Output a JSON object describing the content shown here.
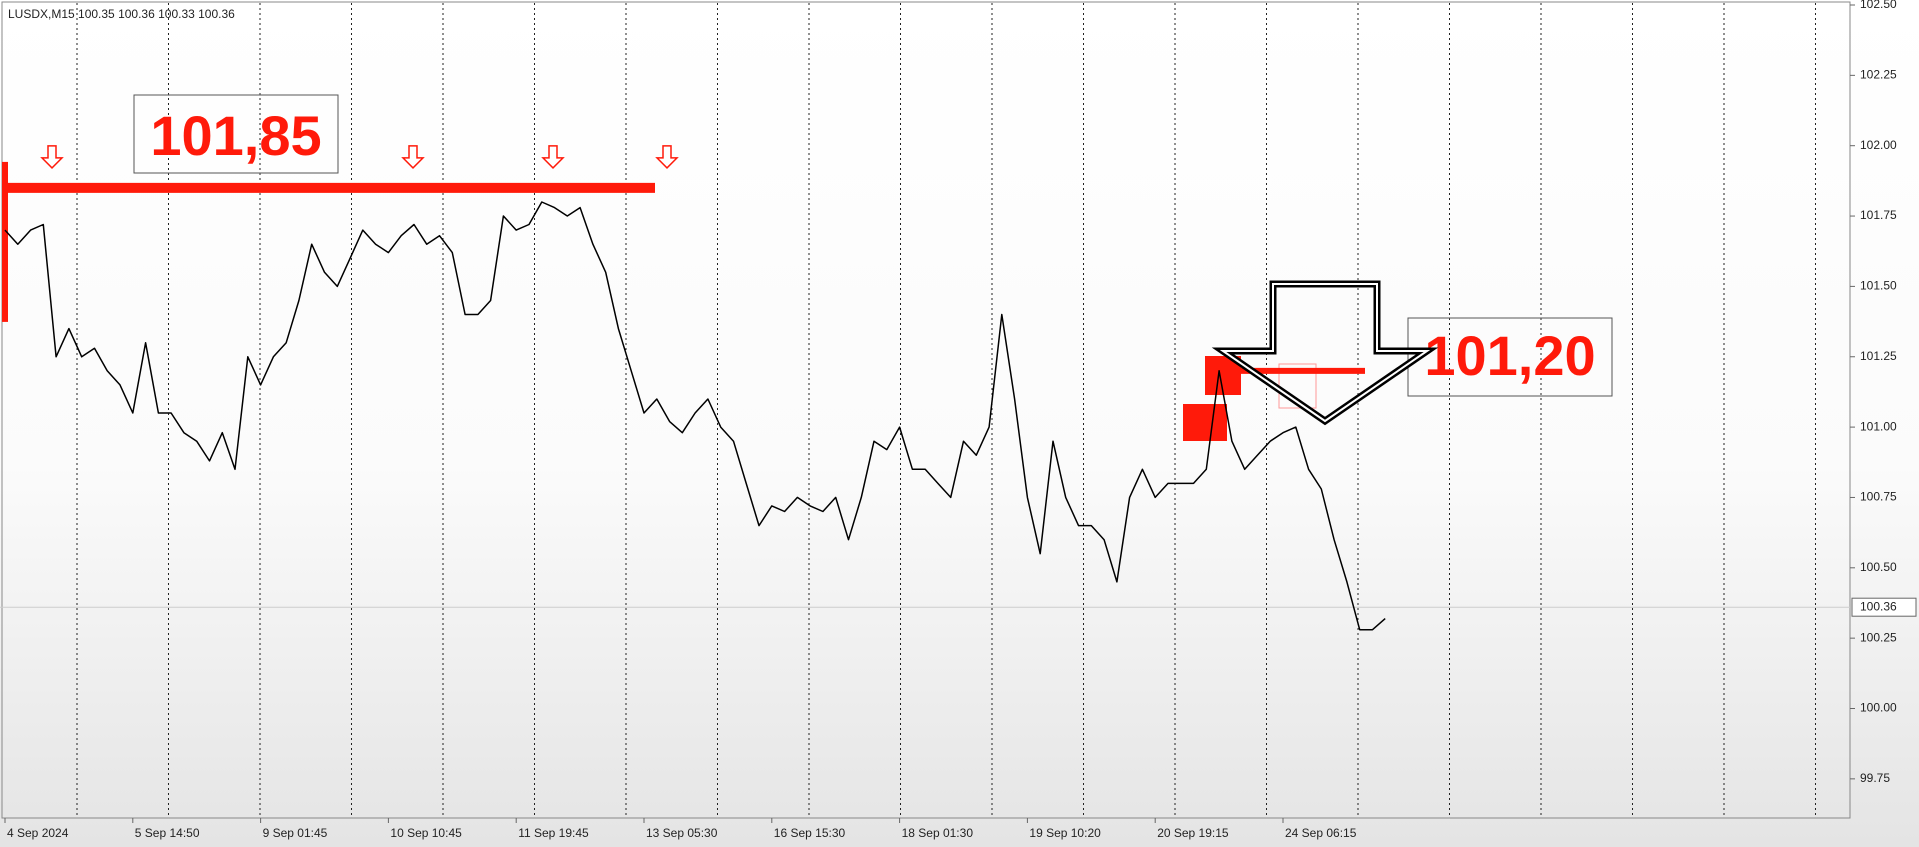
{
  "chart_data": {
    "type": "line",
    "title": "LUSDX,M15 100.35 100.36 100.33 100.36",
    "categories": [
      "4 Sep 2024",
      null,
      null,
      null,
      null,
      null,
      null,
      null,
      null,
      null,
      "5 Sep 14:50",
      null,
      null,
      null,
      null,
      null,
      null,
      null,
      null,
      null,
      "9 Sep 01:45",
      null,
      null,
      null,
      null,
      null,
      null,
      null,
      null,
      null,
      "10 Sep 10:45",
      null,
      null,
      null,
      null,
      null,
      null,
      null,
      null,
      null,
      "11 Sep 19:45",
      null,
      null,
      null,
      null,
      null,
      null,
      null,
      null,
      null,
      "13 Sep 05:30",
      null,
      null,
      null,
      null,
      null,
      null,
      null,
      null,
      null,
      "16 Sep 15:30",
      null,
      null,
      null,
      null,
      null,
      null,
      null,
      null,
      null,
      "18 Sep 01:30",
      null,
      null,
      null,
      null,
      null,
      null,
      null,
      null,
      null,
      "19 Sep 10:20",
      null,
      null,
      null,
      null,
      null,
      null,
      null,
      null,
      null,
      "20 Sep 19:15",
      null,
      null,
      null,
      null,
      null,
      null,
      null,
      null,
      null,
      "24 Sep 06:15",
      null,
      null,
      null,
      null,
      null,
      null,
      null,
      null
    ],
    "values": [
      101.7,
      101.65,
      101.7,
      101.72,
      101.25,
      101.35,
      101.25,
      101.28,
      101.2,
      101.15,
      101.05,
      101.3,
      101.05,
      101.05,
      100.98,
      100.95,
      100.88,
      100.98,
      100.85,
      101.25,
      101.15,
      101.25,
      101.3,
      101.45,
      101.65,
      101.55,
      101.5,
      101.6,
      101.7,
      101.65,
      101.62,
      101.68,
      101.72,
      101.65,
      101.68,
      101.62,
      101.4,
      101.4,
      101.45,
      101.75,
      101.7,
      101.72,
      101.8,
      101.78,
      101.75,
      101.78,
      101.65,
      101.55,
      101.35,
      101.2,
      101.05,
      101.1,
      101.02,
      100.98,
      101.05,
      101.1,
      101.0,
      100.95,
      100.8,
      100.65,
      100.72,
      100.7,
      100.75,
      100.72,
      100.7,
      100.75,
      100.6,
      100.75,
      100.95,
      100.92,
      101.0,
      100.85,
      100.85,
      100.8,
      100.75,
      100.95,
      100.9,
      101.0,
      101.4,
      101.1,
      100.75,
      100.55,
      100.95,
      100.75,
      100.65,
      100.65,
      100.6,
      100.45,
      100.75,
      100.85,
      100.75,
      100.8,
      100.8,
      100.8,
      100.85,
      101.2,
      100.95,
      100.85,
      100.9,
      100.95,
      100.98,
      101.0,
      100.85,
      100.78,
      100.6,
      100.45,
      100.28,
      100.28,
      100.32
    ],
    "color": "#000000",
    "ylim": [
      99.7,
      102.5
    ],
    "yticks": [
      99.75,
      {
        "value": 100.0,
        "label": "100.00"
      },
      100.25,
      {
        "value": 100.5,
        "label": "100.50"
      },
      100.75,
      {
        "value": 101.0,
        "label": "101.00"
      },
      101.25,
      {
        "value": 101.5,
        "label": "101.50"
      },
      101.75,
      {
        "value": 102.0,
        "label": "102.00"
      },
      102.25,
      {
        "value": 102.5,
        "label": "102.50"
      }
    ],
    "last_price": 100.36,
    "levels": [
      {
        "value": 101.85,
        "label": "101,85"
      },
      {
        "value": 101.2,
        "label": "101,20"
      }
    ],
    "level_color": "#ff1a0a"
  }
}
